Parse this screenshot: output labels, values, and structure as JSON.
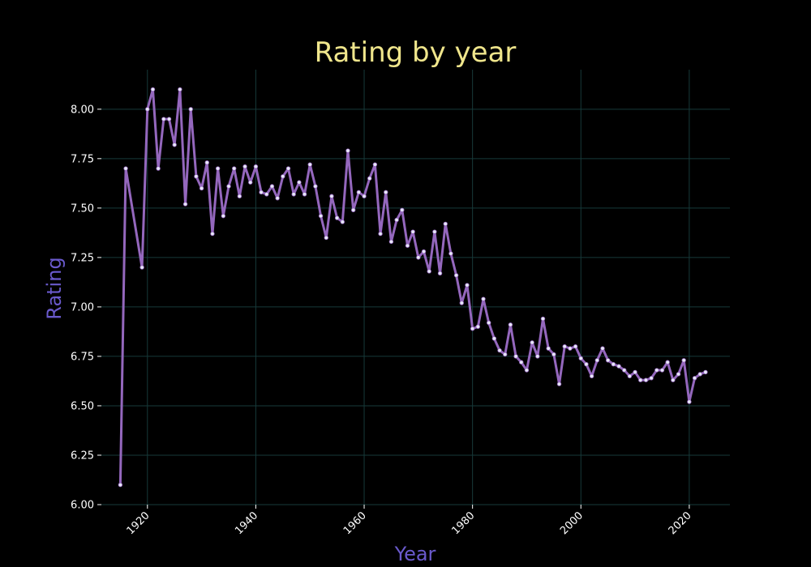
{
  "chart_data": {
    "type": "line",
    "title": "Rating by year",
    "xlabel": "Year",
    "ylabel": "Rating",
    "xlim": [
      1911.5,
      2027.5
    ],
    "ylim": [
      6.0,
      8.2
    ],
    "x_ticks": [
      1920,
      1940,
      1960,
      1980,
      2000,
      2020
    ],
    "x_tick_labels": [
      "1920",
      "1940",
      "1960",
      "1980",
      "2000",
      "2020"
    ],
    "y_ticks": [
      6.0,
      6.25,
      6.5,
      6.75,
      7.0,
      7.25,
      7.5,
      7.75,
      8.0
    ],
    "y_tick_labels": [
      "6.00",
      "6.25",
      "6.50",
      "6.75",
      "7.00",
      "7.25",
      "7.50",
      "7.75",
      "8.00"
    ],
    "grid": true,
    "series": [
      {
        "name": "Rating",
        "x": [
          1915,
          1916,
          1919,
          1920,
          1921,
          1922,
          1923,
          1924,
          1925,
          1926,
          1927,
          1928,
          1929,
          1930,
          1931,
          1932,
          1933,
          1934,
          1935,
          1936,
          1937,
          1938,
          1939,
          1940,
          1941,
          1942,
          1943,
          1944,
          1945,
          1946,
          1947,
          1948,
          1949,
          1950,
          1951,
          1952,
          1953,
          1954,
          1955,
          1956,
          1957,
          1958,
          1959,
          1960,
          1961,
          1962,
          1963,
          1964,
          1965,
          1966,
          1967,
          1968,
          1969,
          1970,
          1971,
          1972,
          1973,
          1974,
          1975,
          1976,
          1977,
          1978,
          1979,
          1980,
          1981,
          1982,
          1983,
          1984,
          1985,
          1986,
          1987,
          1988,
          1989,
          1990,
          1991,
          1992,
          1993,
          1994,
          1995,
          1996,
          1997,
          1998,
          1999,
          2000,
          2001,
          2002,
          2003,
          2004,
          2005,
          2006,
          2007,
          2008,
          2009,
          2010,
          2011,
          2012,
          2013,
          2014,
          2015,
          2016,
          2017,
          2018,
          2019,
          2020,
          2021,
          2022,
          2023
        ],
        "values": [
          6.1,
          7.7,
          7.2,
          8.0,
          8.1,
          7.7,
          7.95,
          7.95,
          7.82,
          8.1,
          7.52,
          8.0,
          7.66,
          7.6,
          7.73,
          7.37,
          7.7,
          7.46,
          7.61,
          7.7,
          7.56,
          7.71,
          7.63,
          7.71,
          7.58,
          7.57,
          7.61,
          7.55,
          7.66,
          7.7,
          7.57,
          7.63,
          7.57,
          7.72,
          7.61,
          7.46,
          7.35,
          7.56,
          7.45,
          7.43,
          7.79,
          7.49,
          7.58,
          7.56,
          7.65,
          7.72,
          7.37,
          7.58,
          7.33,
          7.44,
          7.49,
          7.31,
          7.38,
          7.25,
          7.28,
          7.18,
          7.38,
          7.17,
          7.42,
          7.27,
          7.16,
          7.02,
          7.11,
          6.89,
          6.9,
          7.04,
          6.92,
          6.84,
          6.78,
          6.76,
          6.91,
          6.75,
          6.72,
          6.68,
          6.82,
          6.75,
          6.94,
          6.79,
          6.76,
          6.61,
          6.8,
          6.79,
          6.8,
          6.74,
          6.71,
          6.65,
          6.73,
          6.79,
          6.73,
          6.71,
          6.7,
          6.68,
          6.65,
          6.67,
          6.63,
          6.63,
          6.64,
          6.68,
          6.68,
          6.72,
          6.63,
          6.66,
          6.73,
          6.52,
          6.64,
          6.66,
          6.67
        ]
      }
    ],
    "colors": {
      "background": "#000000",
      "grid": "#173a3a",
      "line": "#9467bd",
      "marker_fill": "#e8e8f8",
      "title": "#f0e68c",
      "axis_label": "#6a5acd",
      "tick": "#ffffff"
    }
  }
}
